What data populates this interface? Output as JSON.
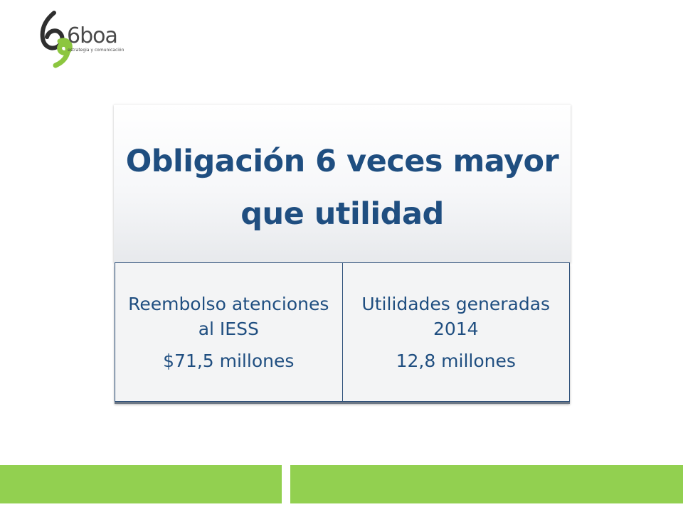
{
  "logo": {
    "wordmark": "6boa",
    "tagline": "estrategia y comunicación"
  },
  "title": "Obligación 6 veces mayor que utilidad",
  "cells": [
    {
      "label": "Reembolso atenciones al IESS",
      "value": "$71,5 millones"
    },
    {
      "label": "Utilidades generadas 2014",
      "value": "12,8 millones"
    }
  ],
  "colors": {
    "title_text": "#1f4e80",
    "accent_green": "#92d050",
    "logo_green": "#8cc63f",
    "logo_text": "#4a4a4a"
  }
}
